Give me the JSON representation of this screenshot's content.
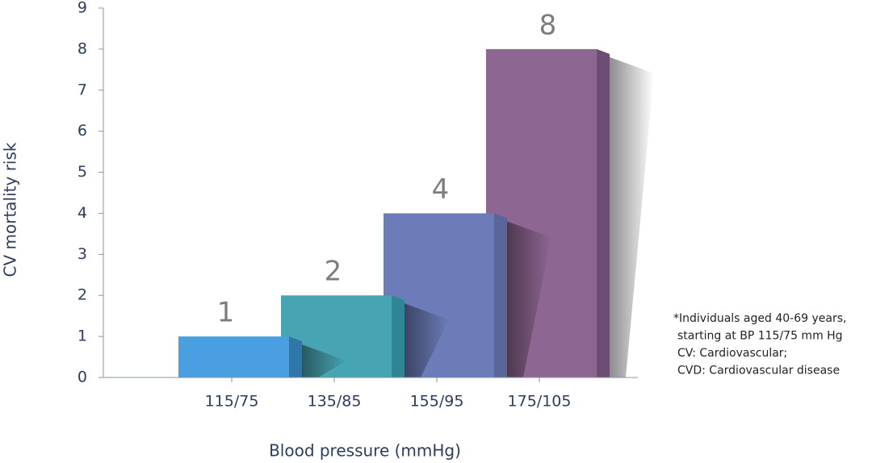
{
  "chart_data": {
    "type": "bar",
    "x_label": "Blood pressure (mmHg)",
    "y_label": "CV mortality risk",
    "categories": [
      "115/75",
      "135/85",
      "155/95",
      "175/105"
    ],
    "series": [
      {
        "name": "CV mortality risk",
        "values": [
          1,
          2,
          4,
          8
        ],
        "colors": [
          "#4a9fe0",
          "#47a4b2",
          "#6b7cb8",
          "#8e6692"
        ],
        "side_colors": [
          "#2f77a8",
          "#2f8593",
          "#58669a",
          "#6e4d74"
        ]
      }
    ],
    "ylim": [
      0,
      9
    ],
    "yticks": [
      0,
      1,
      2,
      3,
      4,
      5,
      6,
      7,
      8,
      9
    ],
    "footnote": [
      "*Individuals aged 40-69 years,",
      "starting at BP 115/75 mm Hg",
      "CV: Cardiovascular;",
      "CVD: Cardiovascular disease"
    ]
  }
}
